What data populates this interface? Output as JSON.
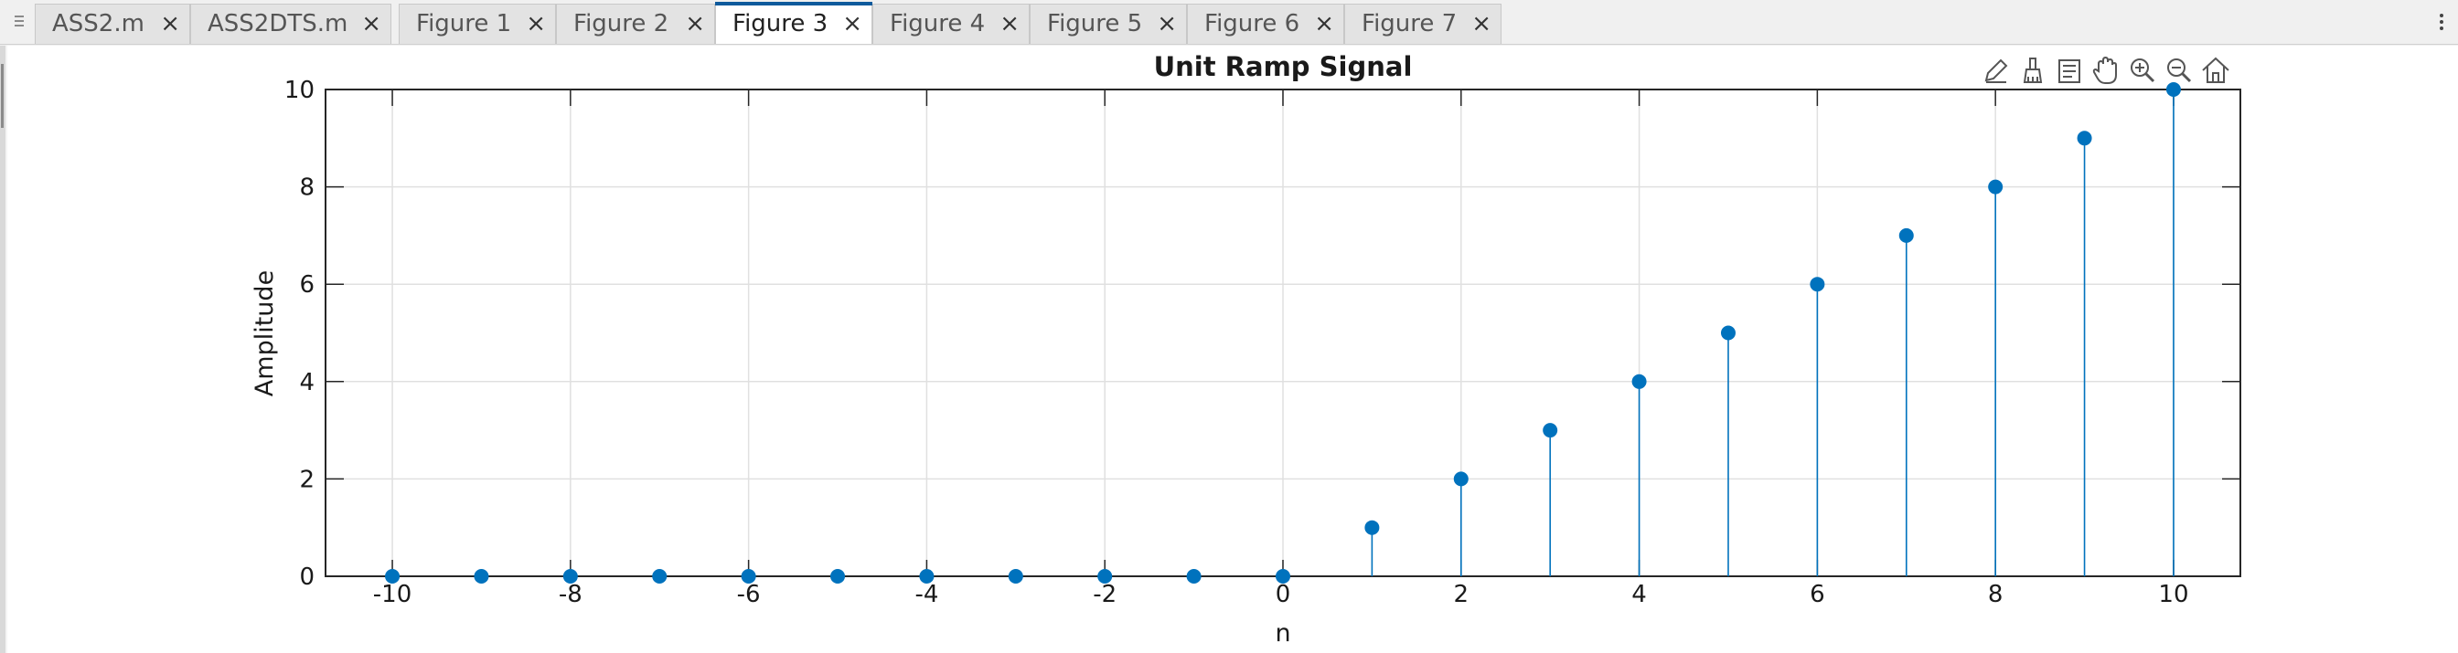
{
  "tabs": [
    {
      "label": "ASS2.m",
      "active": false
    },
    {
      "label": "ASS2DTS.m",
      "active": false
    },
    {
      "label": "Figure 1",
      "active": false
    },
    {
      "label": "Figure 2",
      "active": false
    },
    {
      "label": "Figure 3",
      "active": true
    },
    {
      "label": "Figure 4",
      "active": false
    },
    {
      "label": "Figure 5",
      "active": false
    },
    {
      "label": "Figure 6",
      "active": false
    },
    {
      "label": "Figure 7",
      "active": false
    }
  ],
  "close_glyph": "×",
  "toolbar_icons": [
    "edit-pen-icon",
    "brush-icon",
    "data-tips-icon",
    "pan-hand-icon",
    "zoom-in-icon",
    "zoom-out-icon",
    "home-icon"
  ],
  "colors": {
    "stem": "#0072BD",
    "marker": "#0072BD",
    "grid": "#e0e0e0",
    "active_tab_accent": "#0e5a9c"
  },
  "chart_data": {
    "type": "stem",
    "title": "Unit Ramp Signal",
    "xlabel": "n",
    "ylabel": "Amplitude",
    "x": [
      -10,
      -9,
      -8,
      -7,
      -6,
      -5,
      -4,
      -3,
      -2,
      -1,
      0,
      1,
      2,
      3,
      4,
      5,
      6,
      7,
      8,
      9,
      10
    ],
    "y": [
      0,
      0,
      0,
      0,
      0,
      0,
      0,
      0,
      0,
      0,
      0,
      1,
      2,
      3,
      4,
      5,
      6,
      7,
      8,
      9,
      10
    ],
    "xlim": [
      -10.75,
      10.75
    ],
    "ylim": [
      0,
      10
    ],
    "xticks": [
      -10,
      -8,
      -6,
      -4,
      -2,
      0,
      2,
      4,
      6,
      8,
      10
    ],
    "yticks": [
      0,
      2,
      4,
      6,
      8,
      10
    ],
    "xtick_labels": [
      "-10",
      "-8",
      "-6",
      "-4",
      "-2",
      "0",
      "2",
      "4",
      "6",
      "8",
      "10"
    ],
    "ytick_labels": [
      "0",
      "2",
      "4",
      "6",
      "8",
      "10"
    ],
    "grid": true,
    "legend": "none"
  }
}
